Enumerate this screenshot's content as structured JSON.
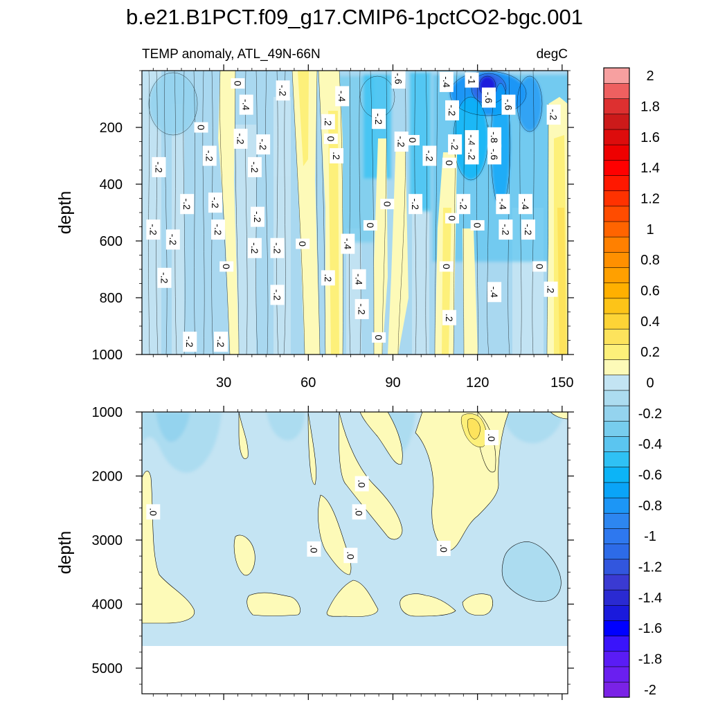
{
  "chart_data": {
    "type": "heatmap",
    "title": "b.e21.B1PCT.f09_g17.CMIP6-1pctCO2-bgc.001",
    "subtitle_left": "TEMP anomaly, ATL_49N-66N",
    "subtitle_right": "degC",
    "xlabel": "",
    "ylabel": "depth",
    "x_ticks": [
      30,
      60,
      90,
      120,
      150
    ],
    "x_tick_labels": [
      "30",
      "60",
      "90",
      "120",
      "150"
    ],
    "upper_panel": {
      "xlim": [
        1,
        152
      ],
      "ylim": [
        0,
        1000
      ],
      "y_ticks": [
        200,
        400,
        600,
        800,
        1000
      ],
      "y_tick_labels": [
        "200",
        "400",
        "600",
        "800",
        "1000"
      ]
    },
    "lower_panel": {
      "xlim": [
        1,
        152
      ],
      "ylim": [
        1000,
        5400
      ],
      "y_ticks": [
        1000,
        2000,
        3000,
        4000,
        5000
      ],
      "y_tick_labels": [
        "1000",
        "2000",
        "3000",
        "4000",
        "5000"
      ],
      "ocean_floor_depth": 4630
    },
    "colorbar": {
      "levels": [
        -2,
        -1.9,
        -1.8,
        -1.7,
        -1.6,
        -1.5,
        -1.4,
        -1.3,
        -1.2,
        -1.1,
        -1,
        -0.9,
        -0.8,
        -0.7,
        -0.6,
        -0.5,
        -0.4,
        -0.3,
        -0.2,
        -0.1,
        0,
        0.1,
        0.2,
        0.3,
        0.4,
        0.5,
        0.6,
        0.7,
        0.8,
        0.9,
        1,
        1.1,
        1.2,
        1.3,
        1.4,
        1.5,
        1.6,
        1.7,
        1.8,
        1.9,
        2
      ],
      "labels": [
        "2",
        "1.8",
        "1.6",
        "1.4",
        "1.2",
        "1",
        "0.8",
        "0.6",
        "0.4",
        "0.2",
        "0",
        "-0.2",
        "-0.4",
        "-0.6",
        "-0.8",
        "-1",
        "-1.2",
        "-1.4",
        "-1.6",
        "-1.8",
        "-2"
      ],
      "colors": [
        "#7a22e6",
        "#6a1ff0",
        "#5a1cf5",
        "#3a14fb",
        "#0000ff",
        "#1a1adc",
        "#2a2ad2",
        "#3a3ad2",
        "#3256de",
        "#2d6be8",
        "#2e78ef",
        "#2d86f0",
        "#1c96f6",
        "#0aa4f8",
        "#0cb4f7",
        "#2fc1f4",
        "#5bc5f0",
        "#77cdee",
        "#94d3ee",
        "#acdcf0",
        "#c3e4f3",
        "#fdfab8",
        "#fdf07a",
        "#fde35c",
        "#fdd436",
        "#fdc418",
        "#ffb000",
        "#ffa000",
        "#ff9000",
        "#ff8000",
        "#ff6400",
        "#ff4c00",
        "#ff3200",
        "#ff1800",
        "#ff0000",
        "#ee0000",
        "#dd0c0c",
        "#cc1a1a",
        "#dd3030",
        "#ee6060",
        "#f7a0a0"
      ]
    },
    "upper_labels": [
      {
        "text": "-.6",
        "x": 92,
        "y": 28
      },
      {
        "text": "-.4",
        "x": 109,
        "y": 40
      },
      {
        "text": "-1",
        "x": 118,
        "y": 33
      },
      {
        "text": "0",
        "x": 35,
        "y": 45
      },
      {
        "text": "-.2",
        "x": 51,
        "y": 70
      },
      {
        "text": "-.4",
        "x": 72,
        "y": 90
      },
      {
        "text": "-.6",
        "x": 124,
        "y": 95
      },
      {
        "text": "-.6",
        "x": 131,
        "y": 120
      },
      {
        "text": "-.4",
        "x": 38,
        "y": 120
      },
      {
        "text": "-.2",
        "x": 111,
        "y": 140
      },
      {
        "text": "-.2",
        "x": 147,
        "y": 155
      },
      {
        "text": "-.2",
        "x": 85,
        "y": 170
      },
      {
        "text": ".2",
        "x": 67,
        "y": 180
      },
      {
        "text": "0",
        "x": 22,
        "y": 200
      },
      {
        "text": "-.2",
        "x": 93,
        "y": 250
      },
      {
        "text": "-.8",
        "x": 126,
        "y": 235
      },
      {
        "text": "-.4",
        "x": 118,
        "y": 245
      },
      {
        "text": "-.2",
        "x": 36,
        "y": 240
      },
      {
        "text": "0",
        "x": 68,
        "y": 240
      },
      {
        "text": "0",
        "x": 97,
        "y": 245
      },
      {
        "text": "-.2",
        "x": 112,
        "y": 260
      },
      {
        "text": "-.2",
        "x": 44,
        "y": 260
      },
      {
        "text": "-.6",
        "x": 126,
        "y": 295
      },
      {
        "text": "-.2",
        "x": 118,
        "y": 295
      },
      {
        "text": ".2",
        "x": 70,
        "y": 300
      },
      {
        "text": "-.2",
        "x": 103,
        "y": 300
      },
      {
        "text": "-.2",
        "x": 25,
        "y": 300
      },
      {
        "text": "0",
        "x": 110,
        "y": 325
      },
      {
        "text": "-.2",
        "x": 7,
        "y": 340
      },
      {
        "text": "-.2",
        "x": 41,
        "y": 340
      },
      {
        "text": "-.2",
        "x": 27,
        "y": 465
      },
      {
        "text": "-.4",
        "x": 129,
        "y": 470
      },
      {
        "text": "-.4",
        "x": 137,
        "y": 470
      },
      {
        "text": "-.2",
        "x": 98,
        "y": 470
      },
      {
        "text": "-.2",
        "x": 115,
        "y": 470
      },
      {
        "text": "-.2",
        "x": 17,
        "y": 470
      },
      {
        "text": "0",
        "x": 88,
        "y": 470
      },
      {
        "text": "-.2",
        "x": 42,
        "y": 515
      },
      {
        "text": "0",
        "x": 111,
        "y": 520
      },
      {
        "text": "0",
        "x": 82,
        "y": 545
      },
      {
        "text": "0",
        "x": 120,
        "y": 545
      },
      {
        "text": "-.2",
        "x": 5,
        "y": 560
      },
      {
        "text": "-.2",
        "x": 28,
        "y": 560
      },
      {
        "text": "-.2",
        "x": 130,
        "y": 560
      },
      {
        "text": "-.2",
        "x": 138,
        "y": 560
      },
      {
        "text": "-.2",
        "x": 12,
        "y": 595
      },
      {
        "text": "0",
        "x": 58,
        "y": 610
      },
      {
        "text": "-.4",
        "x": 74,
        "y": 610
      },
      {
        "text": "-.2",
        "x": 41,
        "y": 625
      },
      {
        "text": "-.2",
        "x": 49,
        "y": 625
      },
      {
        "text": "0",
        "x": 31,
        "y": 690
      },
      {
        "text": "0",
        "x": 109,
        "y": 690
      },
      {
        "text": "0",
        "x": 142,
        "y": 690
      },
      {
        "text": "-.2",
        "x": 9,
        "y": 730
      },
      {
        "text": ".2",
        "x": 67,
        "y": 730
      },
      {
        "text": "-.4",
        "x": 78,
        "y": 735
      },
      {
        "text": ".2",
        "x": 146,
        "y": 770
      },
      {
        "text": "-.4",
        "x": 126,
        "y": 780
      },
      {
        "text": "-.2",
        "x": 49,
        "y": 790
      },
      {
        "text": "-.2",
        "x": 79,
        "y": 840
      },
      {
        "text": ".2",
        "x": 110,
        "y": 870
      },
      {
        "text": "0",
        "x": 85,
        "y": 940
      },
      {
        "text": "-.2",
        "x": 18,
        "y": 955
      },
      {
        "text": "-.2",
        "x": 29,
        "y": 955
      }
    ],
    "lower_labels": [
      {
        "text": ".0",
        "x": 125,
        "y": 1400
      },
      {
        "text": ".0",
        "x": 79,
        "y": 2120
      },
      {
        "text": ".0",
        "x": 5,
        "y": 2560
      },
      {
        "text": ".0",
        "x": 78,
        "y": 2560
      },
      {
        "text": ".0",
        "x": 108,
        "y": 3130
      },
      {
        "text": ".0",
        "x": 62,
        "y": 3140
      },
      {
        "text": ".0",
        "x": 75,
        "y": 3240
      }
    ]
  }
}
